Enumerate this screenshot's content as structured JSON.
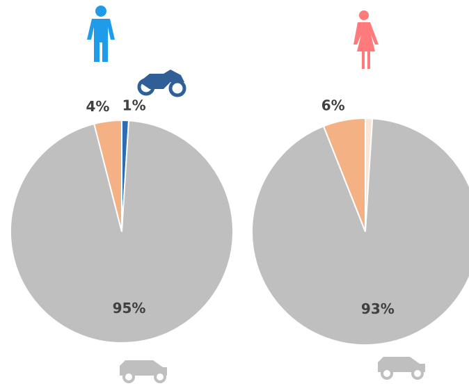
{
  "chart_data": [
    {
      "type": "pie",
      "values": [
        1,
        95,
        4
      ],
      "value_labels": [
        "1%",
        "95%",
        "4%"
      ],
      "colors": [
        "#2e6db4",
        "#bfbfbf",
        "#f4b183"
      ]
    },
    {
      "type": "pie",
      "values": [
        1,
        93,
        6
      ],
      "value_labels": [
        null,
        "93%",
        "6%"
      ],
      "colors": [
        "#fbe5d6",
        "#bfbfbf",
        "#f4b183"
      ]
    }
  ]
}
